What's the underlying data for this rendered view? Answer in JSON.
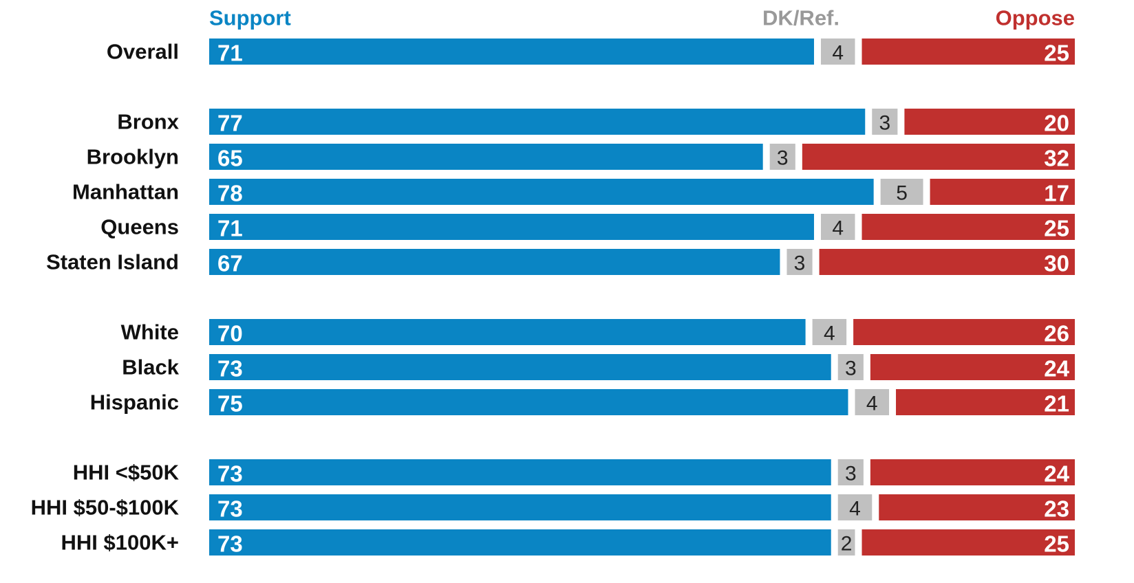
{
  "chart_data": {
    "type": "stacked-bar-horizontal",
    "categories": [
      "Overall",
      "Bronx",
      "Brooklyn",
      "Manhattan",
      "Queens",
      "Staten Island",
      "White",
      "Black",
      "Hispanic",
      "HHI <$50K",
      "HHI $50-$100K",
      "HHI $100K+"
    ],
    "series": [
      {
        "name": "Support",
        "color": "#0a85c4",
        "values": [
          71,
          77,
          65,
          78,
          71,
          67,
          70,
          73,
          75,
          73,
          73,
          73
        ]
      },
      {
        "name": "DK/Ref.",
        "color": "#c0c0c0",
        "values": [
          4,
          3,
          3,
          5,
          4,
          3,
          4,
          3,
          4,
          3,
          4,
          2
        ]
      },
      {
        "name": "Oppose",
        "color": "#c0302e",
        "values": [
          25,
          20,
          32,
          17,
          25,
          30,
          26,
          24,
          21,
          24,
          23,
          25
        ]
      }
    ],
    "xlim": [
      0,
      100
    ]
  }
}
